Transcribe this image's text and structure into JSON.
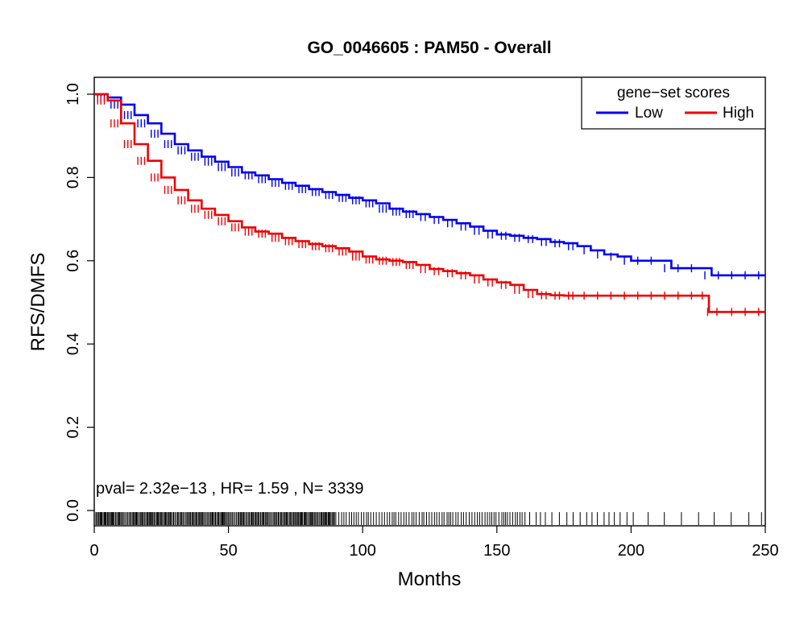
{
  "chart_data": {
    "type": "line",
    "title": "GO_0046605 : PAM50 - Overall",
    "xlabel": "Months",
    "ylabel": "RFS/DMFS",
    "xlim": [
      0,
      250
    ],
    "ylim": [
      0,
      1
    ],
    "xticks": [
      0,
      50,
      100,
      150,
      200,
      250
    ],
    "yticks": [
      0.0,
      0.2,
      0.4,
      0.6,
      0.8,
      1.0
    ],
    "xtick_labels": [
      "0",
      "50",
      "100",
      "150",
      "200",
      "250"
    ],
    "ytick_labels": [
      "0.0",
      "0.2",
      "0.4",
      "0.6",
      "0.8",
      "1.0"
    ],
    "grid": false,
    "legend": {
      "title": "gene−set scores",
      "placement": "top-right",
      "entries": [
        "Low",
        "High"
      ]
    },
    "annotation": "pval= 2.32e−13 ,  HR= 1.59 ,  N= 3339",
    "series": [
      {
        "name": "Low",
        "color": "#0000ee",
        "x": [
          0,
          5,
          10,
          15,
          20,
          25,
          30,
          35,
          40,
          45,
          50,
          55,
          60,
          65,
          70,
          75,
          80,
          85,
          90,
          95,
          100,
          105,
          110,
          115,
          120,
          125,
          130,
          135,
          140,
          145,
          150,
          155,
          160,
          165,
          170,
          175,
          180,
          185,
          190,
          195,
          200,
          205,
          210,
          215,
          220,
          225,
          230,
          235,
          240,
          245,
          250
        ],
        "y": [
          1.0,
          0.992,
          0.975,
          0.95,
          0.93,
          0.905,
          0.88,
          0.865,
          0.85,
          0.838,
          0.825,
          0.812,
          0.805,
          0.796,
          0.787,
          0.78,
          0.772,
          0.765,
          0.758,
          0.751,
          0.745,
          0.738,
          0.725,
          0.718,
          0.712,
          0.705,
          0.698,
          0.69,
          0.682,
          0.672,
          0.663,
          0.66,
          0.655,
          0.652,
          0.645,
          0.642,
          0.635,
          0.625,
          0.615,
          0.61,
          0.6,
          0.6,
          0.6,
          0.582,
          0.582,
          0.582,
          0.565,
          0.565,
          0.565,
          0.565,
          0.565
        ]
      },
      {
        "name": "High",
        "color": "#ee0000",
        "x": [
          0,
          5,
          10,
          15,
          20,
          25,
          30,
          35,
          40,
          45,
          50,
          55,
          60,
          65,
          70,
          75,
          80,
          85,
          90,
          95,
          100,
          105,
          110,
          115,
          120,
          125,
          130,
          135,
          140,
          145,
          150,
          155,
          160,
          165,
          170,
          175,
          180,
          185,
          190,
          195,
          200,
          205,
          210,
          215,
          220,
          225,
          228,
          229,
          235,
          240,
          245,
          250
        ],
        "y": [
          1.0,
          0.985,
          0.93,
          0.88,
          0.84,
          0.8,
          0.77,
          0.745,
          0.725,
          0.71,
          0.695,
          0.68,
          0.67,
          0.665,
          0.655,
          0.647,
          0.64,
          0.635,
          0.63,
          0.622,
          0.61,
          0.603,
          0.6,
          0.597,
          0.59,
          0.58,
          0.575,
          0.57,
          0.565,
          0.555,
          0.548,
          0.542,
          0.53,
          0.52,
          0.517,
          0.516,
          0.516,
          0.516,
          0.516,
          0.516,
          0.516,
          0.516,
          0.516,
          0.516,
          0.516,
          0.516,
          0.516,
          0.477,
          0.477,
          0.477,
          0.477,
          0.477
        ]
      }
    ]
  }
}
